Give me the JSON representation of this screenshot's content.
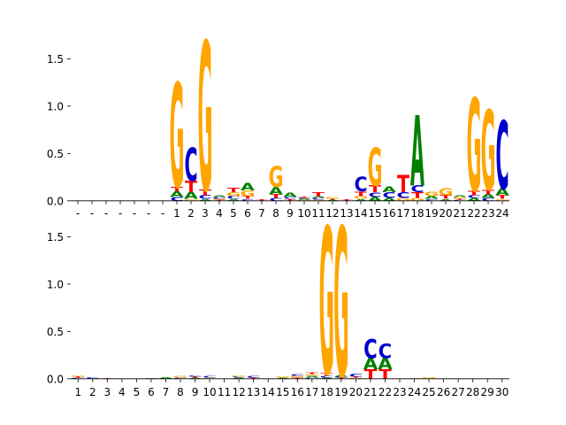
{
  "colors": {
    "A": "#008000",
    "C": "#0000cc",
    "G": "#ffa500",
    "T": "#ff0000"
  },
  "chart_data": [
    {
      "type": "sequence-logo",
      "ylim": [
        0,
        1.7
      ],
      "yticks": [
        "0.0",
        "0.5",
        "1.0",
        "1.5"
      ],
      "ytick_values": [
        0,
        0.5,
        1.0,
        1.5
      ],
      "xticks": [
        "-",
        "-",
        "-",
        "-",
        "-",
        "-",
        "-",
        "1",
        "2",
        "3",
        "4",
        "5",
        "6",
        "7",
        "8",
        "9",
        "10",
        "11",
        "12",
        "13",
        "14",
        "15",
        "16",
        "17",
        "18",
        "19",
        "20",
        "21",
        "22",
        "23",
        "24"
      ],
      "columns": [
        [],
        [],
        [],
        [],
        [],
        [],
        [],
        [
          [
            "C",
            0.04
          ],
          [
            "A",
            0.06
          ],
          [
            "T",
            0.05
          ],
          [
            "G",
            1.1
          ]
        ],
        [
          [
            "G",
            0.02
          ],
          [
            "A",
            0.07
          ],
          [
            "T",
            0.12
          ],
          [
            "C",
            0.35
          ]
        ],
        [
          [
            "A",
            0.02
          ],
          [
            "C",
            0.04
          ],
          [
            "T",
            0.06
          ],
          [
            "G",
            1.57
          ]
        ],
        [
          [
            "T",
            0.01
          ],
          [
            "G",
            0.01
          ],
          [
            "C",
            0.02
          ],
          [
            "A",
            0.02
          ]
        ],
        [
          [
            "A",
            0.02
          ],
          [
            "C",
            0.03
          ],
          [
            "G",
            0.04
          ],
          [
            "T",
            0.05
          ]
        ],
        [
          [
            "C",
            0.02
          ],
          [
            "T",
            0.03
          ],
          [
            "G",
            0.06
          ],
          [
            "A",
            0.08
          ]
        ],
        [
          [
            "A",
            0.005
          ],
          [
            "T",
            0.01
          ]
        ],
        [
          [
            "C",
            0.03
          ],
          [
            "T",
            0.04
          ],
          [
            "A",
            0.08
          ],
          [
            "G",
            0.22
          ]
        ],
        [
          [
            "T",
            0.02
          ],
          [
            "C",
            0.02
          ],
          [
            "A",
            0.05
          ]
        ],
        [
          [
            "G",
            0.01
          ],
          [
            "A",
            0.01
          ],
          [
            "C",
            0.01
          ],
          [
            "T",
            0.01
          ]
        ],
        [
          [
            "G",
            0.01
          ],
          [
            "C",
            0.02
          ],
          [
            "A",
            0.02
          ],
          [
            "T",
            0.04
          ]
        ],
        [
          [
            "A",
            0.01
          ],
          [
            "T",
            0.01
          ],
          [
            "G",
            0.02
          ]
        ],
        [
          [
            "G",
            0.005
          ],
          [
            "T",
            0.01
          ]
        ],
        [
          [
            "A",
            0.02
          ],
          [
            "G",
            0.03
          ],
          [
            "T",
            0.05
          ],
          [
            "C",
            0.15
          ]
        ],
        [
          [
            "A",
            0.04
          ],
          [
            "C",
            0.05
          ],
          [
            "T",
            0.07
          ],
          [
            "G",
            0.4
          ]
        ],
        [
          [
            "A",
            0.03
          ],
          [
            "C",
            0.06
          ],
          [
            "A",
            0.06
          ]
        ],
        [
          [
            "G",
            0.03
          ],
          [
            "C",
            0.06
          ],
          [
            "T",
            0.18
          ]
        ],
        [
          [
            "G",
            0.03
          ],
          [
            "T",
            0.06
          ],
          [
            "C",
            0.07
          ],
          [
            "A",
            0.74
          ]
        ],
        [
          [
            "C",
            0.02
          ],
          [
            "A",
            0.03
          ],
          [
            "G",
            0.05
          ]
        ],
        [
          [
            "A",
            0.02
          ],
          [
            "T",
            0.04
          ],
          [
            "G",
            0.07
          ]
        ],
        [
          [
            "C",
            0.01
          ],
          [
            "T",
            0.01
          ],
          [
            "G",
            0.02
          ],
          [
            "A",
            0.02
          ]
        ],
        [
          [
            "A",
            0.03
          ],
          [
            "C",
            0.03
          ],
          [
            "T",
            0.05
          ],
          [
            "G",
            0.98
          ]
        ],
        [
          [
            "C",
            0.03
          ],
          [
            "A",
            0.04
          ],
          [
            "T",
            0.05
          ],
          [
            "G",
            0.84
          ]
        ],
        [
          [
            "G",
            0.02
          ],
          [
            "T",
            0.04
          ],
          [
            "A",
            0.07
          ],
          [
            "C",
            0.72
          ]
        ]
      ]
    },
    {
      "type": "sequence-logo",
      "ylim": [
        0,
        1.7
      ],
      "yticks": [
        "0.0",
        "0.5",
        "1.0",
        "1.5"
      ],
      "ytick_values": [
        0,
        0.5,
        1.0,
        1.5
      ],
      "xticks": [
        "1",
        "2",
        "3",
        "4",
        "5",
        "6",
        "7",
        "8",
        "9",
        "10",
        "11",
        "12",
        "13",
        "14",
        "15",
        "16",
        "17",
        "18",
        "19",
        "20",
        "21",
        "22",
        "23",
        "24",
        "25",
        "26",
        "27",
        "28",
        "29",
        "30"
      ],
      "columns": [
        [
          [
            "C",
            0.01
          ],
          [
            "T",
            0.01
          ],
          [
            "G",
            0.01
          ]
        ],
        [
          [
            "T",
            0.005
          ],
          [
            "C",
            0.01
          ]
        ],
        [
          [
            "G",
            0.005
          ],
          [
            "T",
            0.005
          ]
        ],
        [
          [
            "A",
            0.005
          ]
        ],
        [
          [
            "T",
            0.005
          ]
        ],
        [
          [
            "G",
            0.005
          ],
          [
            "C",
            0.005
          ]
        ],
        [
          [
            "T",
            0.005
          ],
          [
            "A",
            0.01
          ]
        ],
        [
          [
            "C",
            0.01
          ],
          [
            "G",
            0.02
          ]
        ],
        [
          [
            "A",
            0.01
          ],
          [
            "T",
            0.01
          ],
          [
            "C",
            0.01
          ]
        ],
        [
          [
            "G",
            0.01
          ],
          [
            "C",
            0.02
          ]
        ],
        [
          [
            "T",
            0.005
          ]
        ],
        [
          [
            "A",
            0.01
          ],
          [
            "C",
            0.01
          ],
          [
            "G",
            0.01
          ]
        ],
        [
          [
            "T",
            0.01
          ],
          [
            "C",
            0.02
          ]
        ],
        [],
        [
          [
            "A",
            0.01
          ],
          [
            "G",
            0.01
          ]
        ],
        [
          [
            "T",
            0.01
          ],
          [
            "G",
            0.02
          ],
          [
            "C",
            0.02
          ]
        ],
        [
          [
            "C",
            0.01
          ],
          [
            "A",
            0.02
          ],
          [
            "G",
            0.02
          ],
          [
            "T",
            0.02
          ]
        ],
        [
          [
            "A",
            0.01
          ],
          [
            "C",
            0.02
          ],
          [
            "T",
            0.03
          ],
          [
            "G",
            1.55
          ]
        ],
        [
          [
            "T",
            0.01
          ],
          [
            "C",
            0.01
          ],
          [
            "A",
            0.02
          ],
          [
            "G",
            1.57
          ]
        ],
        [
          [
            "G",
            0.01
          ],
          [
            "T",
            0.01
          ],
          [
            "C",
            0.03
          ]
        ],
        [
          [
            "T",
            0.1
          ],
          [
            "A",
            0.12
          ],
          [
            "C",
            0.2
          ]
        ],
        [
          [
            "T",
            0.1
          ],
          [
            "A",
            0.12
          ],
          [
            "C",
            0.15
          ]
        ],
        [
          [
            "T",
            0.005
          ]
        ],
        [
          [
            "A",
            0.005
          ],
          [
            "G",
            0.005
          ]
        ],
        [
          [
            "C",
            0.005
          ],
          [
            "G",
            0.01
          ]
        ],
        [
          [
            "T",
            0.005
          ]
        ],
        [],
        [
          [
            "C",
            0.005
          ]
        ],
        [
          [
            "G",
            0.005
          ]
        ],
        [
          [
            "A",
            0.005
          ]
        ]
      ]
    }
  ]
}
